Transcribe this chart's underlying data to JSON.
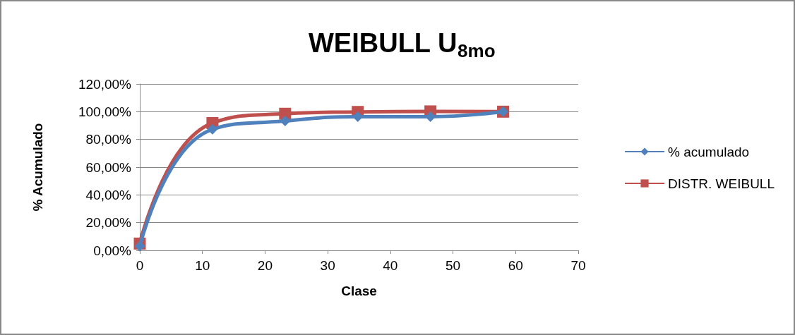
{
  "chart_data": {
    "type": "line",
    "title": "WEIBULL U$_{8mo}$",
    "xlabel": "Clase",
    "ylabel": "% Acumulado",
    "x": [
      0,
      11.6,
      23.2,
      34.8,
      46.4,
      58.0
    ],
    "series": [
      {
        "name": "% acumulado",
        "color": "#4f81bd",
        "marker": "diamond",
        "values": [
          3,
          87.3,
          93.3,
          96.4,
          96.4,
          100
        ]
      },
      {
        "name": "DISTR. WEIBULL",
        "color": "#c0504d",
        "marker": "square",
        "values": [
          4.9,
          91.8,
          98.5,
          99.8,
          100.2,
          100
        ]
      }
    ],
    "xlim": [
      0,
      70
    ],
    "xticks": [
      0,
      10,
      20,
      30,
      40,
      50,
      60,
      70
    ],
    "ylim": [
      0,
      120
    ],
    "yticks": [
      {
        "value": 0,
        "label": "0,00%"
      },
      {
        "value": 20,
        "label": "20,00%"
      },
      {
        "value": 40,
        "label": "40,00%"
      },
      {
        "value": 60,
        "label": "60,00%"
      },
      {
        "value": 80,
        "label": "80,00%"
      },
      {
        "value": 100,
        "label": "100,00%"
      },
      {
        "value": 120,
        "label": "120,00%"
      }
    ],
    "grid": "y",
    "legend": "right",
    "line_style": "solid"
  }
}
